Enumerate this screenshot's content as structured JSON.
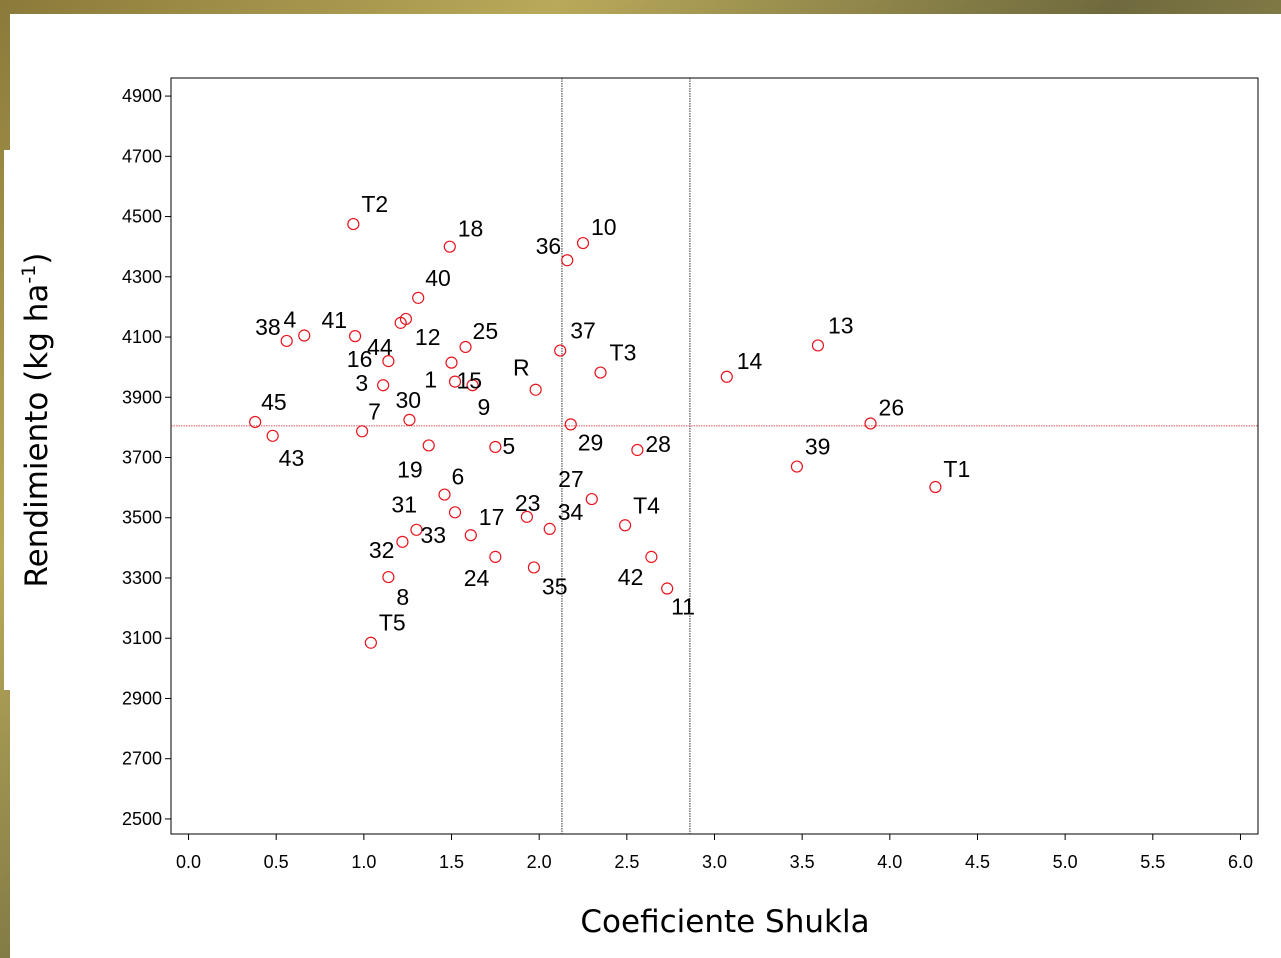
{
  "chart_data": {
    "type": "scatter",
    "xlabel": "Coeficiente Shukla",
    "ylabel": "Rendimiento (kg ha",
    "ylabel_superscript": "-1",
    "ylabel_suffix": ")",
    "xlim": [
      -0.1,
      6.1
    ],
    "ylim": [
      2450,
      4960
    ],
    "x_ticks": [
      0.0,
      0.5,
      1.0,
      1.5,
      2.0,
      2.5,
      3.0,
      3.5,
      4.0,
      4.5,
      5.0,
      5.5,
      6.0
    ],
    "x_tick_labels": [
      "0.0",
      "0.5",
      "1.0",
      "1.5",
      "2.0",
      "2.5",
      "3.0",
      "3.5",
      "4.0",
      "4.5",
      "5.0",
      "5.5",
      "6.0"
    ],
    "y_ticks": [
      2500,
      2700,
      2900,
      3100,
      3300,
      3500,
      3700,
      3900,
      4100,
      4300,
      4500,
      4700,
      4900
    ],
    "y_tick_labels": [
      "2500",
      "2700",
      "2900",
      "3100",
      "3300",
      "3500",
      "3700",
      "3900",
      "4100",
      "4300",
      "4500",
      "4700",
      "4900"
    ],
    "reference_lines": {
      "vertical": [
        2.13,
        2.86
      ],
      "horizontal": [
        3805
      ]
    },
    "marker_color": "#e8141e",
    "line_color": "#000000",
    "hline_color": "#cc2222",
    "points": [
      {
        "label": "T2",
        "x": 0.94,
        "y": 4475
      },
      {
        "label": "18",
        "x": 1.49,
        "y": 4400
      },
      {
        "label": "36",
        "x": 2.16,
        "y": 4355
      },
      {
        "label": "10",
        "x": 2.25,
        "y": 4412
      },
      {
        "label": "40",
        "x": 1.31,
        "y": 4230
      },
      {
        "label": "38",
        "x": 0.56,
        "y": 4087
      },
      {
        "label": "4",
        "x": 0.66,
        "y": 4105
      },
      {
        "label": "41",
        "x": 0.95,
        "y": 4103
      },
      {
        "label": "12",
        "x": 1.24,
        "y": 4160
      },
      {
        "label": "44",
        "x": 1.21,
        "y": 4147
      },
      {
        "label": "16",
        "x": 1.14,
        "y": 4020
      },
      {
        "label": "25",
        "x": 1.58,
        "y": 4067
      },
      {
        "label": "15",
        "x": 1.5,
        "y": 4015
      },
      {
        "label": "37",
        "x": 2.12,
        "y": 4055
      },
      {
        "label": "T3",
        "x": 2.35,
        "y": 3982
      },
      {
        "label": "3",
        "x": 1.11,
        "y": 3940
      },
      {
        "label": "1",
        "x": 1.52,
        "y": 3952
      },
      {
        "label": "9",
        "x": 1.62,
        "y": 3940
      },
      {
        "label": "R",
        "x": 1.98,
        "y": 3925
      },
      {
        "label": "45",
        "x": 0.38,
        "y": 3818
      },
      {
        "label": "7",
        "x": 0.99,
        "y": 3787
      },
      {
        "label": "30",
        "x": 1.26,
        "y": 3825
      },
      {
        "label": "43",
        "x": 0.48,
        "y": 3772
      },
      {
        "label": "19",
        "x": 1.37,
        "y": 3740
      },
      {
        "label": "5",
        "x": 1.75,
        "y": 3735
      },
      {
        "label": "29",
        "x": 2.18,
        "y": 3810
      },
      {
        "label": "28",
        "x": 2.56,
        "y": 3725
      },
      {
        "label": "6",
        "x": 1.46,
        "y": 3577
      },
      {
        "label": "27",
        "x": 2.3,
        "y": 3562
      },
      {
        "label": "31",
        "x": 1.52,
        "y": 3518
      },
      {
        "label": "23",
        "x": 1.93,
        "y": 3503
      },
      {
        "label": "34",
        "x": 2.06,
        "y": 3463
      },
      {
        "label": "T4",
        "x": 2.49,
        "y": 3475
      },
      {
        "label": "33",
        "x": 1.3,
        "y": 3460
      },
      {
        "label": "17",
        "x": 1.61,
        "y": 3442
      },
      {
        "label": "32",
        "x": 1.22,
        "y": 3420
      },
      {
        "label": "24",
        "x": 1.75,
        "y": 3370
      },
      {
        "label": "35",
        "x": 1.97,
        "y": 3335
      },
      {
        "label": "42",
        "x": 2.64,
        "y": 3370
      },
      {
        "label": "11",
        "x": 2.73,
        "y": 3265
      },
      {
        "label": "8",
        "x": 1.14,
        "y": 3303
      },
      {
        "label": "T5",
        "x": 1.04,
        "y": 3085
      },
      {
        "label": "14",
        "x": 3.07,
        "y": 3968
      },
      {
        "label": "13",
        "x": 3.59,
        "y": 4072
      },
      {
        "label": "26",
        "x": 3.89,
        "y": 3813
      },
      {
        "label": "39",
        "x": 3.47,
        "y": 3670
      },
      {
        "label": "T1",
        "x": 4.26,
        "y": 3602
      }
    ]
  }
}
